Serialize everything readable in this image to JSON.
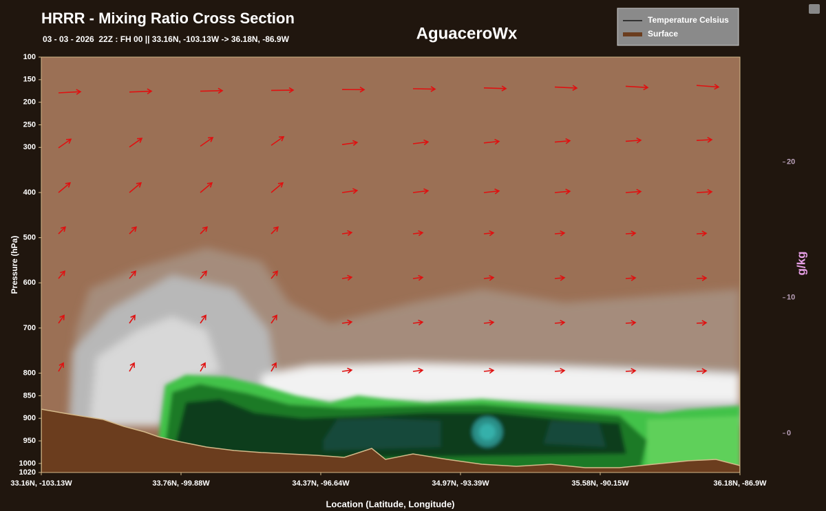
{
  "chart_data": {
    "type": "cross-section",
    "title": "HRRR - Mixing Ratio Cross Section",
    "subtitle": "03 - 03 - 2026  22Z : FH 00 || 33.16N, -103.13W -> 36.18N, -86.9W",
    "watermark": "AguaceroWx",
    "x_label": "Location (Latitude, Longitude)",
    "y_label": "Pressure (hPa)",
    "categories": [
      "33.16N, -103.13W",
      "33.76N, -99.88W",
      "34.37N, -96.64W",
      "34.97N, -93.39W",
      "35.58N, -90.15W",
      "36.18N, -86.9W"
    ],
    "ylim": [
      1020,
      100
    ],
    "yticks": [
      100,
      150,
      200,
      250,
      300,
      400,
      500,
      600,
      700,
      800,
      850,
      900,
      950,
      1000,
      1020
    ],
    "legend": [
      {
        "name": "Temperature Celsius",
        "color": "#333333"
      },
      {
        "name": "Surface",
        "color": "#6b3d1e"
      }
    ],
    "colorbar": {
      "label": "g/kg",
      "lim": [
        0,
        25
      ],
      "ticks": [
        0,
        10,
        20
      ]
    }
  }
}
